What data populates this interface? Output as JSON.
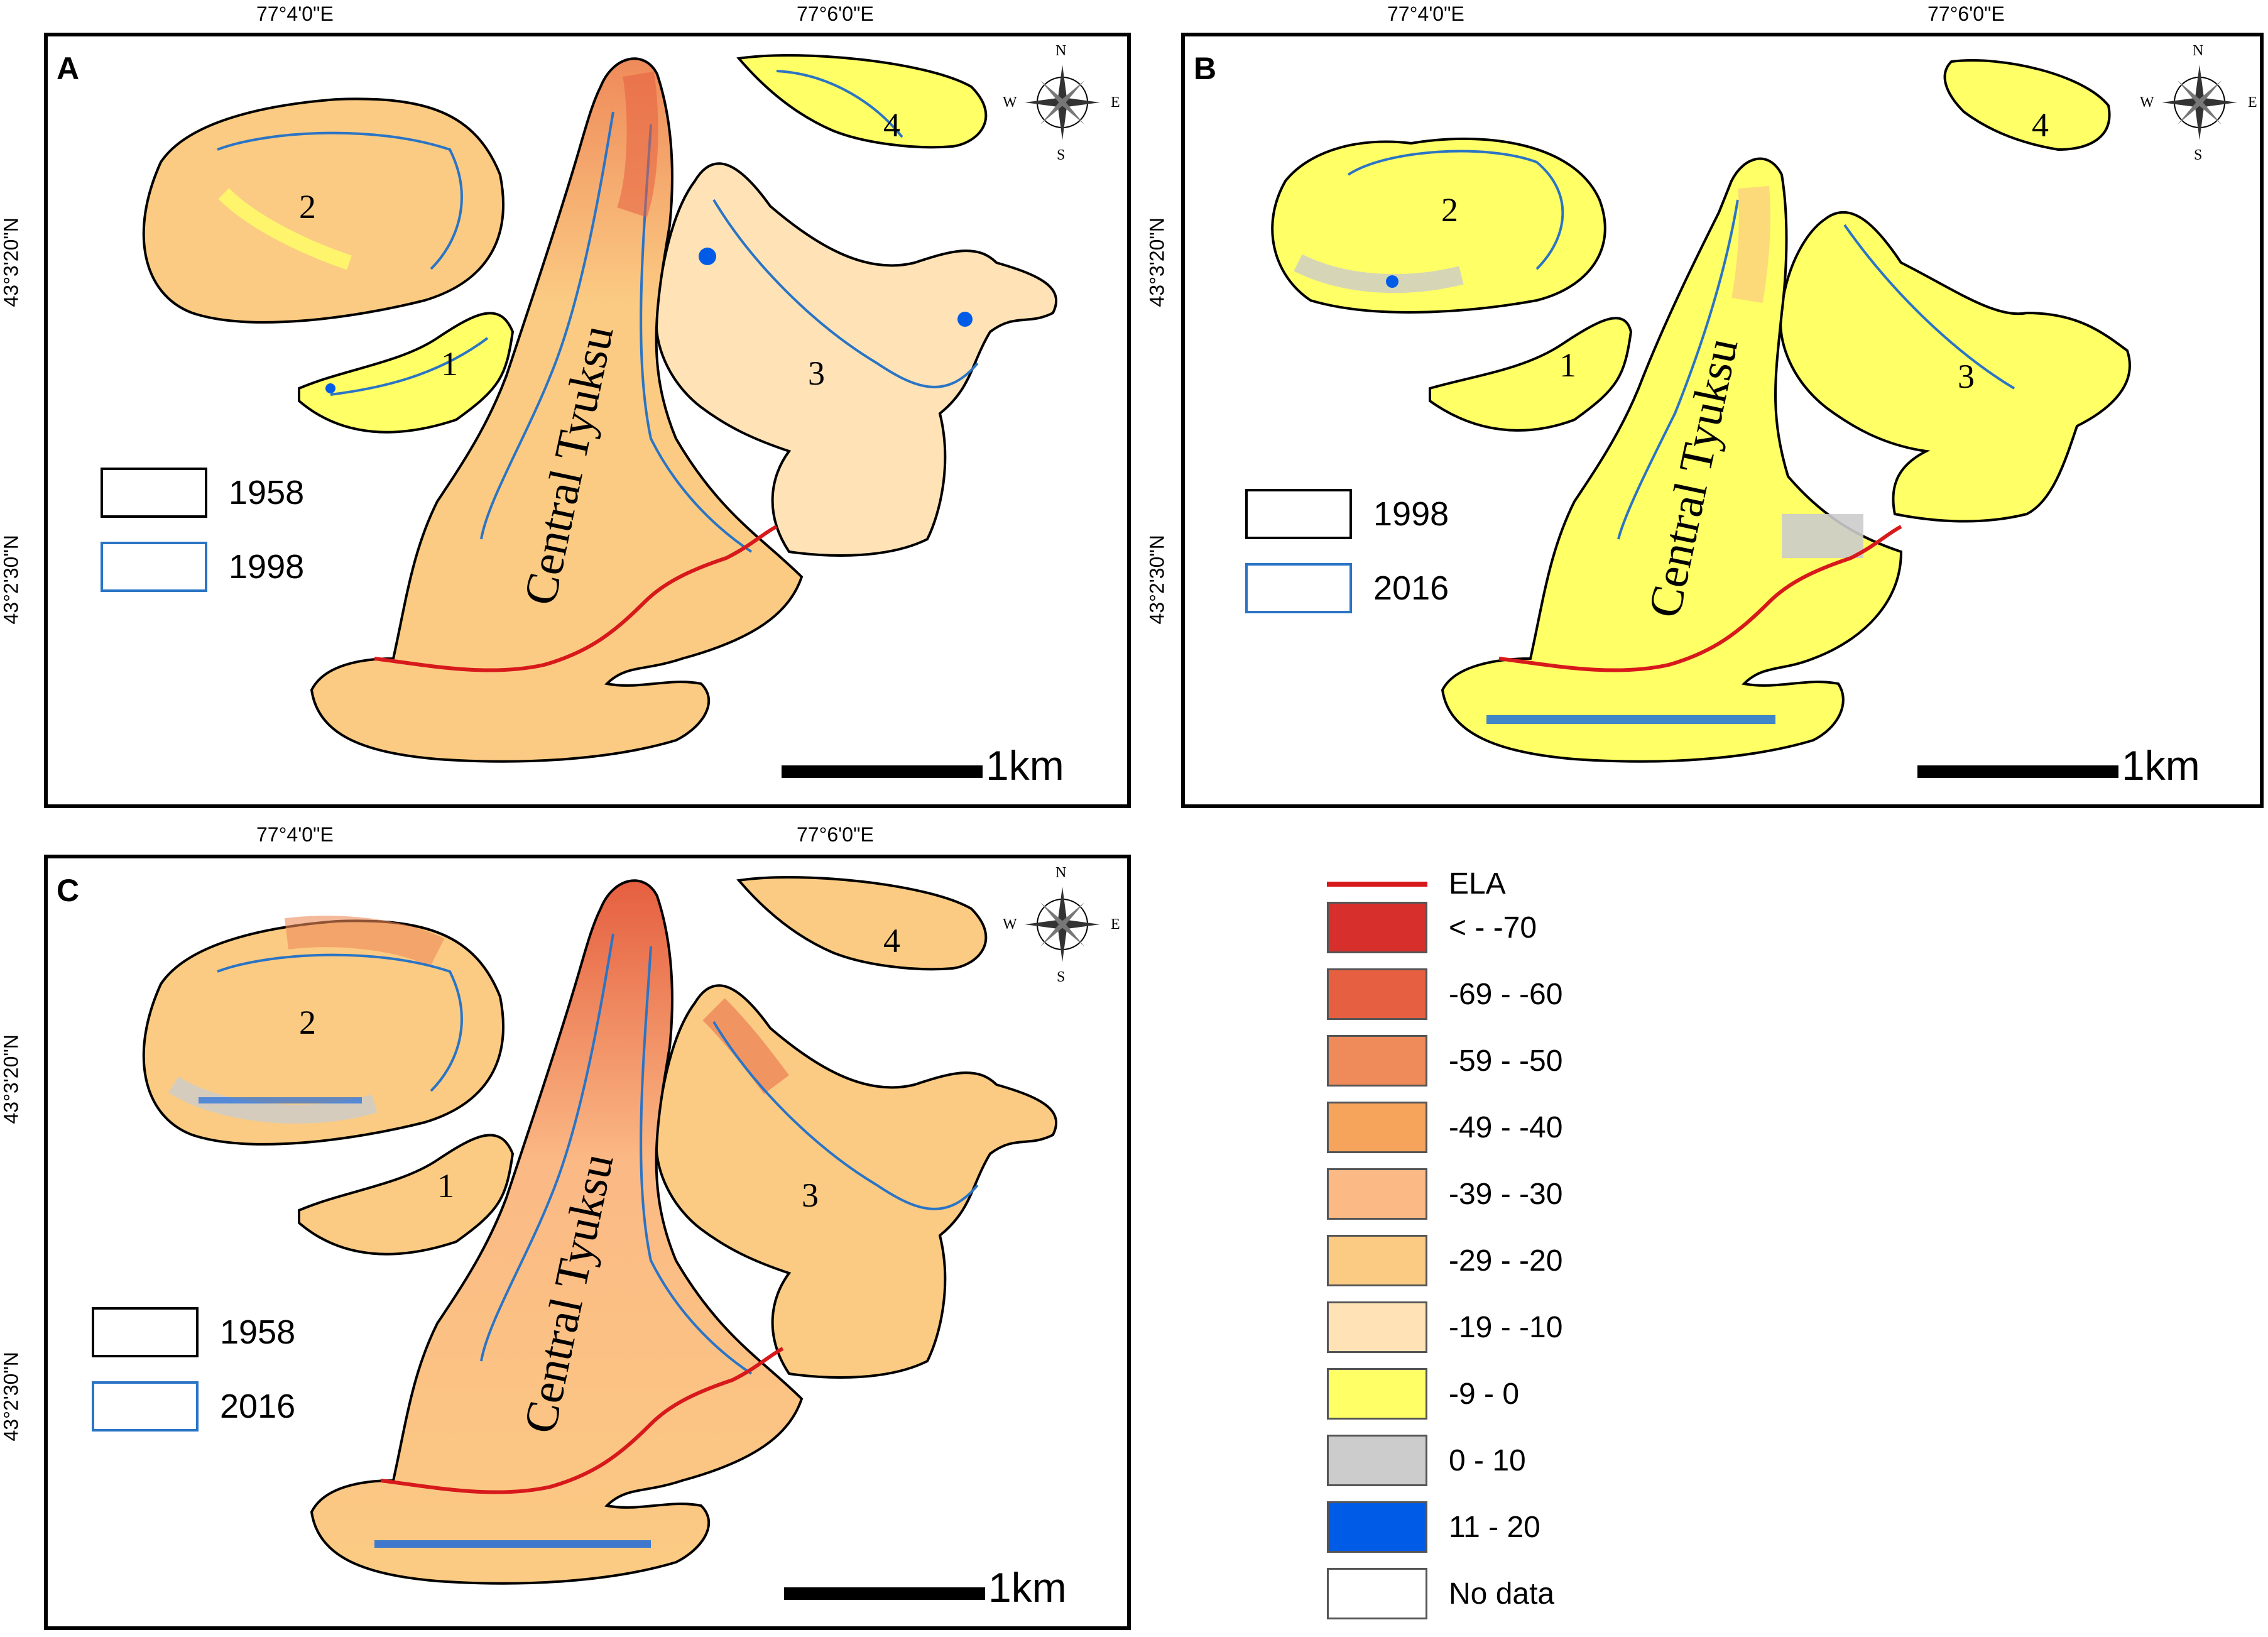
{
  "coordinates": {
    "lon_4": "77°4'0\"E",
    "lon_6": "77°6'0\"E",
    "lat_20": "43°3'20\"N",
    "lat_30": "43°2'30\"N"
  },
  "panels": [
    {
      "id": "A",
      "outline_legend": [
        "1958",
        "1998"
      ]
    },
    {
      "id": "B",
      "outline_legend": [
        "1998",
        "2016"
      ]
    },
    {
      "id": "C",
      "outline_legend": [
        "1958",
        "2016"
      ]
    }
  ],
  "glacier_labels": {
    "main": "Central Tyuksu",
    "g1": "1",
    "g2": "2",
    "g3": "3",
    "g4": "4"
  },
  "compass": {
    "n": "N",
    "s": "S",
    "e": "E",
    "w": "W"
  },
  "scale_label": "1km",
  "legend": {
    "ela_label": "ELA",
    "ela_color": "#d7191c",
    "classes": [
      {
        "label": "< - -70",
        "color": "#d7302c"
      },
      {
        "label": "-69 - -60",
        "color": "#e55f40"
      },
      {
        "label": "-59 - -50",
        "color": "#ef8a5a"
      },
      {
        "label": "-49 - -40",
        "color": "#f6a45c"
      },
      {
        "label": "-39 - -30",
        "color": "#fbb985"
      },
      {
        "label": "-29 - -20",
        "color": "#fbcb83"
      },
      {
        "label": "-19 - -10",
        "color": "#ffe3b7"
      },
      {
        "label": "-9 - 0",
        "color": "#ffff66"
      },
      {
        "label": "0 - 10",
        "color": "#cccccc"
      },
      {
        "label": "11 - 20",
        "color": "#005ce6"
      },
      {
        "label": "No data",
        "color": "#ffffff"
      }
    ]
  },
  "colors": {
    "outline_1958": "#000000",
    "outline_1998": "#2a74c5",
    "outline_2016": "#2a74c5"
  }
}
